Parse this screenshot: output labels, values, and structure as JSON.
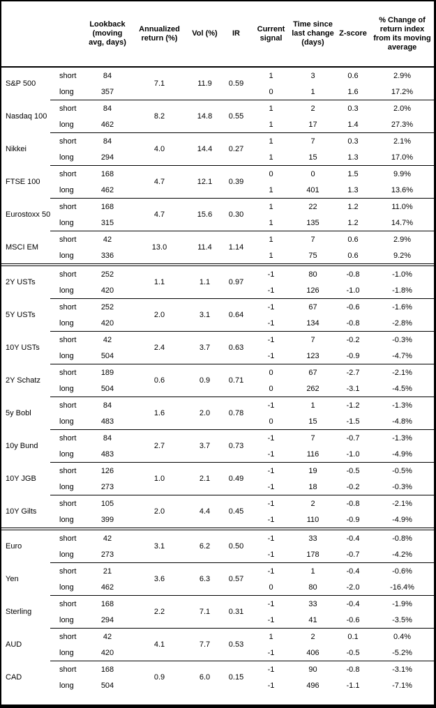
{
  "headers": {
    "asset": "",
    "horizon": "",
    "lookback": "Lookback (moving avg, days)",
    "ann_return": "Annualized return (%)",
    "vol": "Vol (%)",
    "ir": "IR",
    "signal": "Current signal",
    "time_since": "Time since last change (days)",
    "z_score": "Z-score",
    "pct_change": "% Change of return index from its moving average"
  },
  "sections": [
    {
      "id": "equities",
      "groups": [
        {
          "asset": "S&P 500",
          "ann_return": "7.1",
          "vol": "11.9",
          "ir": "0.59",
          "rows": [
            {
              "horizon": "short",
              "lookback": "84",
              "signal": "1",
              "time_since": "3",
              "z_score": "0.6",
              "pct_change": "2.9%"
            },
            {
              "horizon": "long",
              "lookback": "357",
              "signal": "0",
              "time_since": "1",
              "z_score": "1.6",
              "pct_change": "17.2%"
            }
          ]
        },
        {
          "asset": "Nasdaq 100",
          "ann_return": "8.2",
          "vol": "14.8",
          "ir": "0.55",
          "rows": [
            {
              "horizon": "short",
              "lookback": "84",
              "signal": "1",
              "time_since": "2",
              "z_score": "0.3",
              "pct_change": "2.0%"
            },
            {
              "horizon": "long",
              "lookback": "462",
              "signal": "1",
              "time_since": "17",
              "z_score": "1.4",
              "pct_change": "27.3%"
            }
          ]
        },
        {
          "asset": "Nikkei",
          "ann_return": "4.0",
          "vol": "14.4",
          "ir": "0.27",
          "rows": [
            {
              "horizon": "short",
              "lookback": "84",
              "signal": "1",
              "time_since": "7",
              "z_score": "0.3",
              "pct_change": "2.1%"
            },
            {
              "horizon": "long",
              "lookback": "294",
              "signal": "1",
              "time_since": "15",
              "z_score": "1.3",
              "pct_change": "17.0%"
            }
          ]
        },
        {
          "asset": "FTSE 100",
          "ann_return": "4.7",
          "vol": "12.1",
          "ir": "0.39",
          "rows": [
            {
              "horizon": "short",
              "lookback": "168",
              "signal": "0",
              "time_since": "0",
              "z_score": "1.5",
              "pct_change": "9.9%"
            },
            {
              "horizon": "long",
              "lookback": "462",
              "signal": "1",
              "time_since": "401",
              "z_score": "1.3",
              "pct_change": "13.6%"
            }
          ]
        },
        {
          "asset": "Eurostoxx 50",
          "ann_return": "4.7",
          "vol": "15.6",
          "ir": "0.30",
          "rows": [
            {
              "horizon": "short",
              "lookback": "168",
              "signal": "1",
              "time_since": "22",
              "z_score": "1.2",
              "pct_change": "11.0%"
            },
            {
              "horizon": "long",
              "lookback": "315",
              "signal": "1",
              "time_since": "135",
              "z_score": "1.2",
              "pct_change": "14.7%"
            }
          ]
        },
        {
          "asset": "MSCI EM",
          "ann_return": "13.0",
          "vol": "11.4",
          "ir": "1.14",
          "rows": [
            {
              "horizon": "short",
              "lookback": "42",
              "signal": "1",
              "time_since": "7",
              "z_score": "0.6",
              "pct_change": "2.9%"
            },
            {
              "horizon": "long",
              "lookback": "336",
              "signal": "1",
              "time_since": "75",
              "z_score": "0.6",
              "pct_change": "9.2%"
            }
          ]
        }
      ]
    },
    {
      "id": "bonds",
      "groups": [
        {
          "asset": "2Y USTs",
          "ann_return": "1.1",
          "vol": "1.1",
          "ir": "0.97",
          "rows": [
            {
              "horizon": "short",
              "lookback": "252",
              "signal": "-1",
              "time_since": "80",
              "z_score": "-0.8",
              "pct_change": "-1.0%"
            },
            {
              "horizon": "long",
              "lookback": "420",
              "signal": "-1",
              "time_since": "126",
              "z_score": "-1.0",
              "pct_change": "-1.8%"
            }
          ]
        },
        {
          "asset": "5Y USTs",
          "ann_return": "2.0",
          "vol": "3.1",
          "ir": "0.64",
          "rows": [
            {
              "horizon": "short",
              "lookback": "252",
              "signal": "-1",
              "time_since": "67",
              "z_score": "-0.6",
              "pct_change": "-1.6%"
            },
            {
              "horizon": "long",
              "lookback": "420",
              "signal": "-1",
              "time_since": "134",
              "z_score": "-0.8",
              "pct_change": "-2.8%"
            }
          ]
        },
        {
          "asset": "10Y USTs",
          "ann_return": "2.4",
          "vol": "3.7",
          "ir": "0.63",
          "rows": [
            {
              "horizon": "short",
              "lookback": "42",
              "signal": "-1",
              "time_since": "7",
              "z_score": "-0.2",
              "pct_change": "-0.3%"
            },
            {
              "horizon": "long",
              "lookback": "504",
              "signal": "-1",
              "time_since": "123",
              "z_score": "-0.9",
              "pct_change": "-4.7%"
            }
          ]
        },
        {
          "asset": "2Y Schatz",
          "ann_return": "0.6",
          "vol": "0.9",
          "ir": "0.71",
          "rows": [
            {
              "horizon": "short",
              "lookback": "189",
              "signal": "0",
              "time_since": "67",
              "z_score": "-2.7",
              "pct_change": "-2.1%"
            },
            {
              "horizon": "long",
              "lookback": "504",
              "signal": "0",
              "time_since": "262",
              "z_score": "-3.1",
              "pct_change": "-4.5%"
            }
          ]
        },
        {
          "asset": "5y Bobl",
          "ann_return": "1.6",
          "vol": "2.0",
          "ir": "0.78",
          "rows": [
            {
              "horizon": "short",
              "lookback": "84",
              "signal": "-1",
              "time_since": "1",
              "z_score": "-1.2",
              "pct_change": "-1.3%"
            },
            {
              "horizon": "long",
              "lookback": "483",
              "signal": "0",
              "time_since": "15",
              "z_score": "-1.5",
              "pct_change": "-4.8%"
            }
          ]
        },
        {
          "asset": "10y Bund",
          "ann_return": "2.7",
          "vol": "3.7",
          "ir": "0.73",
          "rows": [
            {
              "horizon": "short",
              "lookback": "84",
              "signal": "-1",
              "time_since": "7",
              "z_score": "-0.7",
              "pct_change": "-1.3%"
            },
            {
              "horizon": "long",
              "lookback": "483",
              "signal": "-1",
              "time_since": "116",
              "z_score": "-1.0",
              "pct_change": "-4.9%"
            }
          ]
        },
        {
          "asset": "10Y JGB",
          "ann_return": "1.0",
          "vol": "2.1",
          "ir": "0.49",
          "rows": [
            {
              "horizon": "short",
              "lookback": "126",
              "signal": "-1",
              "time_since": "19",
              "z_score": "-0.5",
              "pct_change": "-0.5%"
            },
            {
              "horizon": "long",
              "lookback": "273",
              "signal": "-1",
              "time_since": "18",
              "z_score": "-0.2",
              "pct_change": "-0.3%"
            }
          ]
        },
        {
          "asset": "10Y Gilts",
          "ann_return": "2.0",
          "vol": "4.4",
          "ir": "0.45",
          "rows": [
            {
              "horizon": "short",
              "lookback": "105",
              "signal": "-1",
              "time_since": "2",
              "z_score": "-0.8",
              "pct_change": "-2.1%"
            },
            {
              "horizon": "long",
              "lookback": "399",
              "signal": "-1",
              "time_since": "110",
              "z_score": "-0.9",
              "pct_change": "-4.9%"
            }
          ]
        }
      ]
    },
    {
      "id": "fx",
      "groups": [
        {
          "asset": "Euro",
          "ann_return": "3.1",
          "vol": "6.2",
          "ir": "0.50",
          "rows": [
            {
              "horizon": "short",
              "lookback": "42",
              "signal": "-1",
              "time_since": "33",
              "z_score": "-0.4",
              "pct_change": "-0.8%"
            },
            {
              "horizon": "long",
              "lookback": "273",
              "signal": "-1",
              "time_since": "178",
              "z_score": "-0.7",
              "pct_change": "-4.2%"
            }
          ]
        },
        {
          "asset": "Yen",
          "ann_return": "3.6",
          "vol": "6.3",
          "ir": "0.57",
          "rows": [
            {
              "horizon": "short",
              "lookback": "21",
              "signal": "-1",
              "time_since": "1",
              "z_score": "-0.4",
              "pct_change": "-0.6%"
            },
            {
              "horizon": "long",
              "lookback": "462",
              "signal": "0",
              "time_since": "80",
              "z_score": "-2.0",
              "pct_change": "-16.4%"
            }
          ]
        },
        {
          "asset": "Sterling",
          "ann_return": "2.2",
          "vol": "7.1",
          "ir": "0.31",
          "rows": [
            {
              "horizon": "short",
              "lookback": "168",
              "signal": "-1",
              "time_since": "33",
              "z_score": "-0.4",
              "pct_change": "-1.9%"
            },
            {
              "horizon": "long",
              "lookback": "294",
              "signal": "-1",
              "time_since": "41",
              "z_score": "-0.6",
              "pct_change": "-3.5%"
            }
          ]
        },
        {
          "asset": "AUD",
          "ann_return": "4.1",
          "vol": "7.7",
          "ir": "0.53",
          "rows": [
            {
              "horizon": "short",
              "lookback": "42",
              "signal": "1",
              "time_since": "2",
              "z_score": "0.1",
              "pct_change": "0.4%"
            },
            {
              "horizon": "long",
              "lookback": "420",
              "signal": "-1",
              "time_since": "406",
              "z_score": "-0.5",
              "pct_change": "-5.2%"
            }
          ]
        },
        {
          "asset": "CAD",
          "ann_return": "0.9",
          "vol": "6.0",
          "ir": "0.15",
          "rows": [
            {
              "horizon": "short",
              "lookback": "168",
              "signal": "-1",
              "time_since": "90",
              "z_score": "-0.8",
              "pct_change": "-3.1%"
            },
            {
              "horizon": "long",
              "lookback": "504",
              "signal": "-1",
              "time_since": "496",
              "z_score": "-1.1",
              "pct_change": "-7.1%"
            }
          ]
        }
      ]
    }
  ]
}
